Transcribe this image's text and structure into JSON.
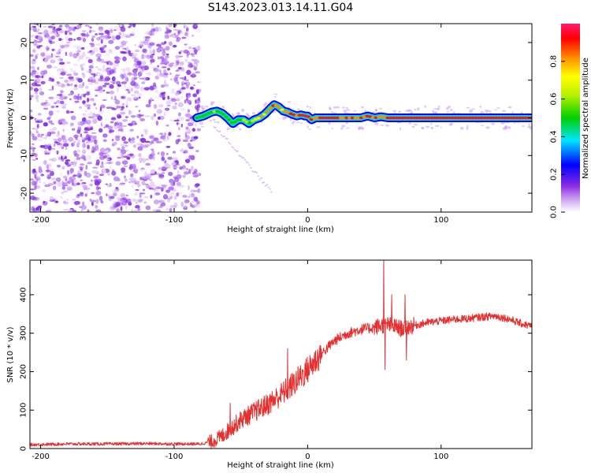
{
  "title": "S143.2023.013.14.11.G04",
  "colors": {
    "signal": "#e53030",
    "scatter": "#8a2be2",
    "axis": "#000000"
  },
  "chart_data": [
    {
      "type": "heatmap",
      "xlabel": "Height of straight line (km)",
      "ylabel": "Frequency (Hz)",
      "xlim": [
        -208,
        168
      ],
      "ylim": [
        -25,
        25
      ],
      "x_ticks": [
        -200,
        -100,
        0,
        100
      ],
      "y_ticks": [
        20,
        10,
        0,
        -10,
        -20
      ],
      "colorbar": {
        "label": "Normalized spectral amplitude",
        "range": [
          0,
          1
        ],
        "ticks": [
          0.0,
          0.2,
          0.4,
          0.6,
          0.8
        ]
      },
      "noise_region": {
        "x_from": -208,
        "x_to": -81,
        "amplitude": 0.15
      },
      "ridge": {
        "x": [
          -83,
          -78,
          -72,
          -68,
          -64,
          -60,
          -56,
          -52,
          -48,
          -44,
          -40,
          -36,
          -32,
          -28,
          -25,
          -22,
          -18,
          -15,
          -12,
          -8,
          -5,
          -2,
          0,
          3,
          6,
          10,
          20,
          30,
          40,
          45,
          50,
          55,
          60,
          70,
          80,
          100,
          120,
          140,
          168
        ],
        "freq": [
          0,
          0.5,
          1.5,
          1.8,
          1.2,
          0,
          -1.5,
          -0.5,
          -0.5,
          -1.5,
          -0.5,
          0,
          1,
          2.5,
          3.5,
          3,
          1.8,
          1.5,
          1,
          0.5,
          0.8,
          0.5,
          0.5,
          -0.5,
          0,
          0,
          0,
          0,
          0,
          0.5,
          0,
          0.3,
          0,
          0,
          0,
          0,
          0,
          0,
          0
        ],
        "amplitude": [
          0.5,
          0.55,
          0.6,
          0.65,
          0.5,
          0.5,
          0.55,
          0.5,
          0.6,
          0.55,
          0.7,
          0.75,
          0.8,
          0.85,
          0.9,
          0.85,
          0.8,
          0.85,
          0.9,
          0.88,
          0.92,
          0.95,
          0.95,
          0.9,
          0.92,
          0.95,
          0.95,
          0.9,
          0.92,
          0.9,
          0.88,
          0.9,
          0.92,
          0.95,
          0.95,
          0.97,
          0.96,
          0.95,
          0.95
        ]
      }
    },
    {
      "type": "line",
      "xlabel": "Height of straight line (km)",
      "ylabel": "SNR (10 * v/v)",
      "xlim": [
        -208,
        168
      ],
      "ylim": [
        0,
        490
      ],
      "x_ticks": [
        -200,
        -100,
        0,
        100
      ],
      "y_ticks": [
        0,
        100,
        200,
        300,
        400
      ],
      "series": [
        {
          "x": [
            -208,
            -180,
            -150,
            -120,
            -100,
            -90,
            -80,
            -72,
            -65,
            -60,
            -50,
            -40,
            -30,
            -20,
            -10,
            0,
            10,
            20,
            30,
            40,
            50,
            55,
            60,
            65,
            70,
            80,
            90,
            100,
            110,
            120,
            130,
            140,
            150,
            160,
            168
          ],
          "y": [
            10,
            12,
            12,
            13,
            12,
            12,
            12,
            18,
            30,
            45,
            75,
            95,
            115,
            140,
            170,
            205,
            245,
            280,
            300,
            310,
            315,
            320,
            322,
            318,
            312,
            320,
            328,
            332,
            336,
            338,
            342,
            345,
            338,
            325,
            318
          ]
        }
      ],
      "spikes": [
        {
          "x": 57,
          "y": 490
        },
        {
          "x": 58,
          "y": 205
        },
        {
          "x": 63,
          "y": 400
        },
        {
          "x": 73,
          "y": 400
        },
        {
          "x": 74,
          "y": 230
        },
        {
          "x": -15,
          "y": 260
        },
        {
          "x": -58,
          "y": 118
        }
      ]
    }
  ]
}
